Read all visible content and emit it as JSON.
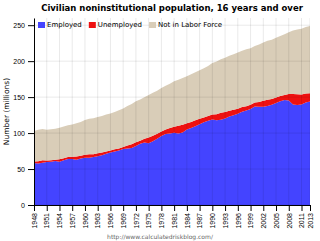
{
  "chart_data": {
    "type": "area",
    "stacked": true,
    "title": "Civilian noninstitutional population, 16 years and over",
    "ylabel": "Number (millions)",
    "annotation": "http://www.calculatedriskblog.com/",
    "x": [
      1948,
      1949,
      1950,
      1951,
      1952,
      1953,
      1954,
      1955,
      1956,
      1957,
      1958,
      1959,
      1960,
      1961,
      1962,
      1963,
      1964,
      1965,
      1966,
      1967,
      1968,
      1969,
      1970,
      1971,
      1972,
      1973,
      1974,
      1975,
      1976,
      1977,
      1978,
      1979,
      1980,
      1981,
      1982,
      1983,
      1984,
      1985,
      1986,
      1987,
      1988,
      1989,
      1990,
      1991,
      1992,
      1993,
      1994,
      1995,
      1996,
      1997,
      1998,
      1999,
      2000,
      2001,
      2002,
      2003,
      2004,
      2005,
      2006,
      2007,
      2008,
      2009,
      2010,
      2011,
      2012,
      2013
    ],
    "series": [
      {
        "name": "Employed",
        "color": "#4444ff",
        "values": [
          58.3,
          57.6,
          58.9,
          59.9,
          60.3,
          61.2,
          60.1,
          62.2,
          63.8,
          64.1,
          63.0,
          64.6,
          65.8,
          65.7,
          66.7,
          67.8,
          69.3,
          71.1,
          72.9,
          74.4,
          75.9,
          77.9,
          78.7,
          79.4,
          82.2,
          85.1,
          86.8,
          85.8,
          88.8,
          92.0,
          96.0,
          98.8,
          99.3,
          100.4,
          99.5,
          100.8,
          105.0,
          107.2,
          109.6,
          112.4,
          114.9,
          117.3,
          118.8,
          117.7,
          118.5,
          120.3,
          123.1,
          124.9,
          126.7,
          129.6,
          131.5,
          133.5,
          136.9,
          136.5,
          136.5,
          137.7,
          139.3,
          141.7,
          144.4,
          146.0,
          145.4,
          139.9,
          139.1,
          139.9,
          142.5,
          143.9
        ]
      },
      {
        "name": "Unemployed",
        "color": "#ee1111",
        "values": [
          2.3,
          3.4,
          3.3,
          2.1,
          1.9,
          1.8,
          3.6,
          2.9,
          2.8,
          2.9,
          4.6,
          3.8,
          3.9,
          4.7,
          4.0,
          4.1,
          3.8,
          3.4,
          2.9,
          3.0,
          2.8,
          2.8,
          4.1,
          5.0,
          4.9,
          4.4,
          5.2,
          7.9,
          7.4,
          7.0,
          6.2,
          6.1,
          7.6,
          8.3,
          10.7,
          10.7,
          8.5,
          8.3,
          8.2,
          7.4,
          6.7,
          6.5,
          7.0,
          8.6,
          9.6,
          8.9,
          8.0,
          7.4,
          7.2,
          6.7,
          5.9,
          5.9,
          5.7,
          6.8,
          8.4,
          8.8,
          8.1,
          7.6,
          7.0,
          7.1,
          8.9,
          14.3,
          14.8,
          13.7,
          12.5,
          11.5
        ]
      },
      {
        "name": "Not in Labor Force",
        "color": "#d9cdb8",
        "values": [
          42.4,
          43.7,
          43.3,
          42.7,
          43.2,
          43.0,
          43.8,
          44.0,
          44.4,
          45.0,
          46.1,
          47.0,
          48.6,
          49.5,
          49.9,
          50.4,
          50.8,
          51.2,
          51.3,
          51.8,
          52.9,
          53.6,
          55.0,
          56.0,
          57.0,
          57.1,
          57.9,
          59.4,
          60.0,
          60.0,
          60.5,
          60.8,
          61.6,
          63.2,
          64.0,
          65.1,
          65.5,
          66.2,
          66.8,
          67.5,
          68.5,
          69.5,
          71.5,
          73.3,
          74.6,
          75.6,
          76.3,
          77.3,
          78.2,
          78.0,
          79.1,
          78.6,
          78.4,
          80.0,
          80.9,
          81.7,
          82.5,
          83.2,
          83.5,
          84.4,
          86.0,
          88.5,
          90.0,
          91.5,
          92.5,
          93.6
        ]
      }
    ],
    "xlim": [
      1948,
      2013
    ],
    "xticks": [
      1948,
      1951,
      1954,
      1957,
      1960,
      1963,
      1966,
      1969,
      1972,
      1975,
      1978,
      1981,
      1984,
      1987,
      1990,
      1993,
      1996,
      1999,
      2002,
      2005,
      2008,
      2011,
      2013
    ],
    "ylim": [
      0,
      260
    ],
    "yticks": [
      0,
      50,
      100,
      150,
      200,
      250
    ],
    "grid": true,
    "legend": "upper left"
  }
}
